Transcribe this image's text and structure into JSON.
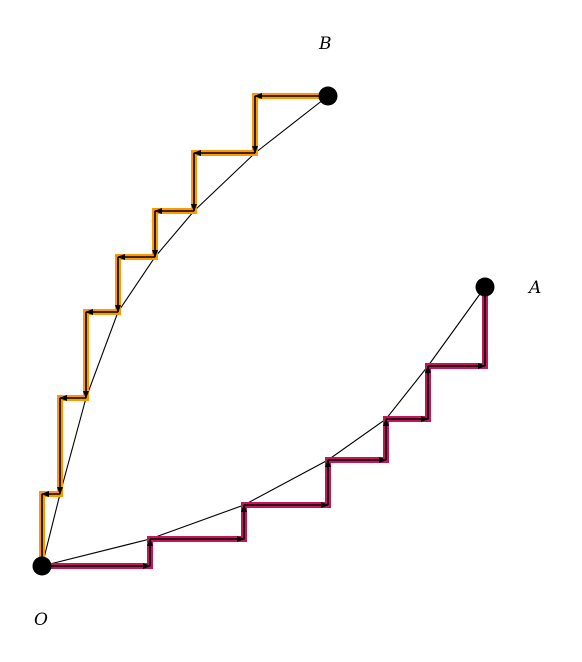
{
  "labels": {
    "point_b": "B",
    "point_a": "A",
    "origin": "O"
  },
  "colors": {
    "path_a_highlight": "#c2185b",
    "path_b_highlight": "#ff9800",
    "arrow": "#000000",
    "curve": "#000000",
    "point": "#000000"
  }
}
